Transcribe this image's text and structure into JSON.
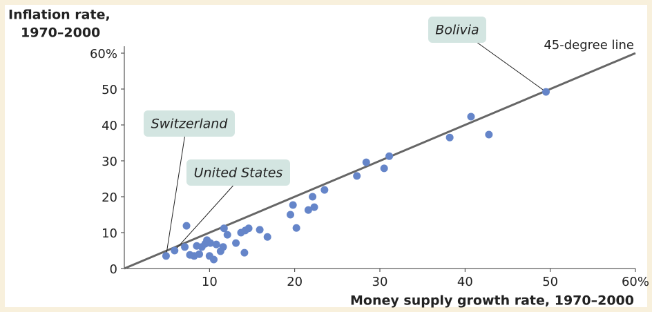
{
  "chart_data": {
    "type": "scatter",
    "x_label": "Money supply growth rate, 1970–2000",
    "y_label": [
      "Inflation rate,",
      "1970–2000"
    ],
    "line_label": "45-degree line",
    "color": "#6585c9",
    "line_color": "#666666",
    "x": [
      4.9,
      5.9,
      7.1,
      7.3,
      7.7,
      8.2,
      8.5,
      8.8,
      9.1,
      9.5,
      9.7,
      10.1,
      10.0,
      10.5,
      10.8,
      11.3,
      11.6,
      11.7,
      12.1,
      13.1,
      13.7,
      14.1,
      14.2,
      14.6,
      15.9,
      16.8,
      19.5,
      19.8,
      20.2,
      21.6,
      22.1,
      22.3,
      23.5,
      27.3,
      28.4,
      30.5,
      31.1,
      38.2,
      40.7,
      42.8,
      49.5
    ],
    "values": [
      3.5,
      5.0,
      6.0,
      11.9,
      3.8,
      3.5,
      6.3,
      4.0,
      6.0,
      6.9,
      7.9,
      7.1,
      3.5,
      2.5,
      6.7,
      4.8,
      6.0,
      11.2,
      9.4,
      7.1,
      10.0,
      4.4,
      10.6,
      11.2,
      10.8,
      8.8,
      15.0,
      17.7,
      11.3,
      16.3,
      20.0,
      17.1,
      21.9,
      25.8,
      29.6,
      27.9,
      31.3,
      36.5,
      42.3,
      37.3,
      49.2
    ],
    "point_labels": [
      "Switzerland",
      "United States",
      null,
      null,
      null,
      null,
      null,
      null,
      null,
      null,
      null,
      null,
      null,
      null,
      null,
      null,
      null,
      null,
      null,
      null,
      null,
      null,
      null,
      null,
      null,
      null,
      null,
      null,
      null,
      null,
      null,
      null,
      null,
      null,
      null,
      null,
      null,
      null,
      null,
      null,
      "Bolivia"
    ],
    "xlim": [
      0,
      60
    ],
    "ylim": [
      0,
      60
    ],
    "xticks": [
      10,
      20,
      30,
      40,
      50,
      {
        "value": 60,
        "label": "60%"
      }
    ],
    "yticks": [
      0,
      10,
      20,
      30,
      40,
      50,
      {
        "value": 60,
        "label": "60%"
      }
    ]
  }
}
